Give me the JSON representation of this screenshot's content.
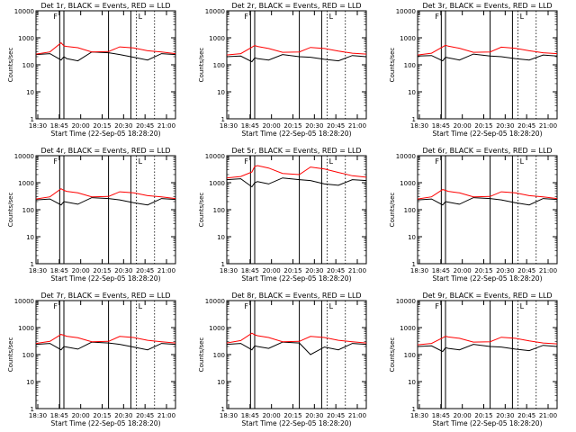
{
  "chart_data": [
    {
      "type": "line",
      "title": "Det 1r, BLACK = Events, RED = LLD",
      "xlabel": "Start Time (22-Sep-05 18:28:20)",
      "ylabel": "Counts/sec",
      "yscale": "log",
      "ylim": [
        1,
        10000
      ],
      "x_tick_labels": [
        "18:30",
        "18:45",
        "20:00",
        "20:15",
        "20:30",
        "20:45",
        "21:00"
      ],
      "y_tick_labels": [
        "1",
        "10",
        "100",
        "1000",
        "10000"
      ],
      "x": [
        0,
        10,
        18,
        20,
        22,
        30,
        40,
        52,
        60,
        70,
        80,
        90,
        100
      ],
      "series": [
        {
          "name": "Events",
          "color": "#000000",
          "values": [
            240,
            260,
            150,
            200,
            170,
            140,
            300,
            280,
            240,
            190,
            150,
            260,
            240
          ]
        },
        {
          "name": "LLD",
          "color": "#ff0000",
          "values": [
            250,
            300,
            650,
            500,
            480,
            430,
            300,
            310,
            460,
            420,
            330,
            300,
            260
          ]
        }
      ],
      "markers": {
        "solid": [
          17,
          20,
          52,
          68
        ],
        "dotted": [
          72,
          85
        ],
        "labels": [
          "F",
          "L"
        ]
      }
    },
    {
      "type": "line",
      "title": "Det 2r, BLACK = Events, RED = LLD",
      "xlabel": "Start Time (22-Sep-05 18:28:20)",
      "ylabel": "Counts/sec",
      "yscale": "log",
      "ylim": [
        1,
        10000
      ],
      "x_tick_labels": [
        "18:30",
        "18:45",
        "20:00",
        "20:15",
        "20:30",
        "20:45",
        "21:00"
      ],
      "y_tick_labels": [
        "1",
        "10",
        "100",
        "1000",
        "10000"
      ],
      "x": [
        0,
        10,
        18,
        20,
        22,
        30,
        40,
        52,
        60,
        70,
        80,
        90,
        100
      ],
      "series": [
        {
          "name": "Events",
          "color": "#000000",
          "values": [
            200,
            210,
            130,
            180,
            170,
            150,
            240,
            200,
            190,
            160,
            140,
            220,
            200
          ]
        },
        {
          "name": "LLD",
          "color": "#ff0000",
          "values": [
            230,
            260,
            450,
            520,
            480,
            400,
            290,
            300,
            440,
            400,
            320,
            270,
            250
          ]
        }
      ],
      "markers": {
        "solid": [
          17,
          20,
          52,
          68
        ],
        "dotted": [
          72,
          85
        ],
        "labels": [
          "F",
          "L"
        ]
      }
    },
    {
      "type": "line",
      "title": "Det 3r, BLACK = Events, RED = LLD",
      "xlabel": "Start Time (22-Sep-05 18:28:20)",
      "ylabel": "Counts/sec",
      "yscale": "log",
      "ylim": [
        1,
        10000
      ],
      "x_tick_labels": [
        "18:30",
        "18:45",
        "20:00",
        "20:15",
        "20:30",
        "20:45",
        "21:00"
      ],
      "y_tick_labels": [
        "1",
        "10",
        "100",
        "1000",
        "10000"
      ],
      "x": [
        0,
        10,
        18,
        20,
        22,
        30,
        40,
        52,
        60,
        70,
        80,
        90,
        100
      ],
      "series": [
        {
          "name": "Events",
          "color": "#000000",
          "values": [
            210,
            220,
            140,
            190,
            180,
            150,
            250,
            210,
            200,
            170,
            150,
            230,
            210
          ]
        },
        {
          "name": "LLD",
          "color": "#ff0000",
          "values": [
            230,
            270,
            460,
            530,
            490,
            410,
            290,
            300,
            450,
            410,
            330,
            280,
            260
          ]
        }
      ],
      "markers": {
        "solid": [
          17,
          20,
          52,
          68
        ],
        "dotted": [
          72,
          85
        ],
        "labels": [
          "F",
          "L"
        ]
      }
    },
    {
      "type": "line",
      "title": "Det 4r, BLACK = Events, RED = LLD",
      "xlabel": "Start Time (22-Sep-05 18:28:20)",
      "ylabel": "Counts/sec",
      "yscale": "log",
      "ylim": [
        1,
        10000
      ],
      "x_tick_labels": [
        "18:30",
        "18:45",
        "20:00",
        "20:15",
        "20:30",
        "20:45",
        "21:00"
      ],
      "y_tick_labels": [
        "1",
        "10",
        "100",
        "1000",
        "10000"
      ],
      "x": [
        0,
        10,
        18,
        20,
        22,
        30,
        40,
        52,
        60,
        70,
        80,
        90,
        100
      ],
      "series": [
        {
          "name": "Events",
          "color": "#000000",
          "values": [
            230,
            250,
            150,
            200,
            190,
            160,
            280,
            260,
            230,
            180,
            150,
            260,
            240
          ]
        },
        {
          "name": "LLD",
          "color": "#ff0000",
          "values": [
            250,
            300,
            600,
            520,
            480,
            420,
            300,
            310,
            460,
            420,
            330,
            300,
            260
          ]
        }
      ],
      "markers": {
        "solid": [
          17,
          20,
          52,
          68
        ],
        "dotted": [
          72,
          85
        ],
        "labels": [
          "F",
          "L"
        ]
      }
    },
    {
      "type": "line",
      "title": "Det 5r, BLACK = Events, RED = LLD",
      "xlabel": "Start Time (22-Sep-05 18:28:20)",
      "ylabel": "Counts/sec",
      "yscale": "log",
      "ylim": [
        1,
        10000
      ],
      "x_tick_labels": [
        "18:30",
        "18:45",
        "20:00",
        "20:15",
        "20:30",
        "20:45",
        "21:00"
      ],
      "y_tick_labels": [
        "1",
        "10",
        "100",
        "1000",
        "10000"
      ],
      "x": [
        0,
        10,
        18,
        20,
        22,
        30,
        40,
        52,
        60,
        70,
        80,
        90,
        100
      ],
      "series": [
        {
          "name": "Events",
          "color": "#000000",
          "values": [
            1300,
            1400,
            700,
            1000,
            1100,
            900,
            1500,
            1300,
            1200,
            900,
            800,
            1300,
            1200
          ]
        },
        {
          "name": "LLD",
          "color": "#ff0000",
          "values": [
            1500,
            1700,
            2500,
            4000,
            4300,
            3500,
            2200,
            2000,
            3800,
            3200,
            2400,
            1800,
            1600
          ]
        }
      ],
      "markers": {
        "solid": [
          17,
          20,
          52,
          68
        ],
        "dotted": [
          72,
          85
        ],
        "labels": [
          "F",
          "L"
        ]
      }
    },
    {
      "type": "line",
      "title": "Det 6r, BLACK = Events, RED = LLD",
      "xlabel": "Start Time (22-Sep-05 18:28:20)",
      "ylabel": "Counts/sec",
      "yscale": "log",
      "ylim": [
        1,
        10000
      ],
      "x_tick_labels": [
        "18:30",
        "18:45",
        "20:00",
        "20:15",
        "20:30",
        "20:45",
        "21:00"
      ],
      "y_tick_labels": [
        "1",
        "10",
        "100",
        "1000",
        "10000"
      ],
      "x": [
        0,
        10,
        18,
        20,
        22,
        30,
        40,
        52,
        60,
        70,
        80,
        90,
        100
      ],
      "series": [
        {
          "name": "Events",
          "color": "#000000",
          "values": [
            230,
            250,
            150,
            200,
            190,
            160,
            280,
            260,
            230,
            180,
            150,
            260,
            240
          ]
        },
        {
          "name": "LLD",
          "color": "#ff0000",
          "values": [
            250,
            300,
            560,
            520,
            480,
            420,
            300,
            310,
            460,
            420,
            330,
            300,
            260
          ]
        }
      ],
      "markers": {
        "solid": [
          17,
          20,
          52,
          68
        ],
        "dotted": [
          72,
          85
        ],
        "labels": [
          "F",
          "L"
        ]
      }
    },
    {
      "type": "line",
      "title": "Det 7r, BLACK = Events, RED = LLD",
      "xlabel": "Start Time (22-Sep-05 18:28:20)",
      "ylabel": "Counts/sec",
      "yscale": "log",
      "ylim": [
        1,
        10000
      ],
      "x_tick_labels": [
        "18:30",
        "18:45",
        "20:00",
        "20:15",
        "20:30",
        "20:45",
        "21:00"
      ],
      "y_tick_labels": [
        "1",
        "10",
        "100",
        "1000",
        "10000"
      ],
      "x": [
        0,
        10,
        18,
        20,
        22,
        30,
        40,
        52,
        60,
        70,
        80,
        90,
        100
      ],
      "series": [
        {
          "name": "Events",
          "color": "#000000",
          "values": [
            240,
            260,
            150,
            200,
            190,
            160,
            290,
            270,
            240,
            190,
            150,
            260,
            240
          ]
        },
        {
          "name": "LLD",
          "color": "#ff0000",
          "values": [
            260,
            310,
            560,
            520,
            480,
            420,
            300,
            310,
            470,
            430,
            340,
            300,
            270
          ]
        }
      ],
      "markers": {
        "solid": [
          17,
          20,
          52,
          68
        ],
        "dotted": [
          72,
          85
        ],
        "labels": [
          "F",
          "L"
        ]
      }
    },
    {
      "type": "line",
      "title": "Det 8r, BLACK = Events, RED = LLD",
      "xlabel": "Start Time (22-Sep-05 18:28:20)",
      "ylabel": "Counts/sec",
      "yscale": "log",
      "ylim": [
        1,
        10000
      ],
      "x_tick_labels": [
        "18:30",
        "18:45",
        "20:00",
        "20:15",
        "20:30",
        "20:45",
        "21:00"
      ],
      "y_tick_labels": [
        "1",
        "10",
        "100",
        "1000",
        "10000"
      ],
      "x": [
        0,
        10,
        18,
        20,
        22,
        30,
        40,
        52,
        60,
        70,
        80,
        90,
        100
      ],
      "series": [
        {
          "name": "Events",
          "color": "#000000",
          "values": [
            240,
            260,
            150,
            210,
            200,
            170,
            290,
            270,
            100,
            190,
            150,
            260,
            240
          ]
        },
        {
          "name": "LLD",
          "color": "#ff0000",
          "values": [
            270,
            330,
            620,
            540,
            500,
            430,
            300,
            310,
            470,
            430,
            340,
            300,
            270
          ]
        }
      ],
      "markers": {
        "solid": [
          17,
          20,
          52,
          68
        ],
        "dotted": [
          72,
          85
        ],
        "labels": [
          "F",
          "L"
        ]
      }
    },
    {
      "type": "line",
      "title": "Det 9r, BLACK = Events, RED = LLD",
      "xlabel": "Start Time (22-Sep-05 18:28:20)",
      "ylabel": "Counts/sec",
      "yscale": "log",
      "ylim": [
        1,
        10000
      ],
      "x_tick_labels": [
        "18:30",
        "18:45",
        "20:00",
        "20:15",
        "20:30",
        "20:45",
        "21:00"
      ],
      "y_tick_labels": [
        "1",
        "10",
        "100",
        "1000",
        "10000"
      ],
      "x": [
        0,
        10,
        18,
        20,
        22,
        30,
        40,
        52,
        60,
        70,
        80,
        90,
        100
      ],
      "series": [
        {
          "name": "Events",
          "color": "#000000",
          "values": [
            200,
            210,
            130,
            180,
            170,
            150,
            240,
            200,
            190,
            160,
            140,
            220,
            200
          ]
        },
        {
          "name": "LLD",
          "color": "#ff0000",
          "values": [
            230,
            260,
            420,
            480,
            450,
            400,
            290,
            300,
            440,
            400,
            320,
            270,
            250
          ]
        }
      ],
      "markers": {
        "solid": [
          17,
          20,
          52,
          68
        ],
        "dotted": [
          72,
          85
        ],
        "labels": [
          "F",
          "L"
        ]
      }
    }
  ]
}
